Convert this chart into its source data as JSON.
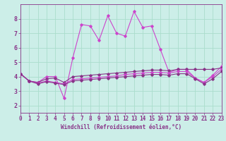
{
  "xlabel": "Windchill (Refroidissement éolien,°C)",
  "background_color": "#cceee8",
  "grid_color": "#aaddcc",
  "line_color": "#cc44cc",
  "line_color2": "#883388",
  "x_min": 0,
  "x_max": 23,
  "y_min": 1.5,
  "y_max": 9.0,
  "yticks": [
    2,
    3,
    4,
    5,
    6,
    7,
    8
  ],
  "xticks": [
    0,
    1,
    2,
    3,
    4,
    5,
    6,
    7,
    8,
    9,
    10,
    11,
    12,
    13,
    14,
    15,
    16,
    17,
    18,
    19,
    20,
    21,
    22,
    23
  ],
  "series1_x": [
    0,
    1,
    2,
    3,
    4,
    5,
    6,
    7,
    8,
    9,
    10,
    11,
    12,
    13,
    14,
    15,
    16,
    17,
    18,
    19,
    20,
    21,
    22,
    23
  ],
  "series1_y": [
    4.2,
    3.7,
    3.6,
    4.0,
    4.0,
    2.5,
    5.3,
    7.6,
    7.5,
    6.5,
    8.2,
    7.0,
    6.8,
    8.5,
    7.4,
    7.5,
    5.9,
    4.3,
    4.5,
    4.5,
    3.9,
    3.6,
    4.1,
    4.7
  ],
  "series2_x": [
    0,
    1,
    2,
    3,
    4,
    5,
    6,
    7,
    8,
    9,
    10,
    11,
    12,
    13,
    14,
    15,
    16,
    17,
    18,
    19,
    20,
    21,
    22,
    23
  ],
  "series2_y": [
    4.2,
    3.7,
    3.6,
    3.85,
    3.9,
    3.6,
    4.0,
    4.05,
    4.1,
    4.15,
    4.2,
    4.25,
    4.3,
    4.35,
    4.4,
    4.45,
    4.45,
    4.4,
    4.5,
    4.5,
    4.5,
    4.5,
    4.5,
    4.6
  ],
  "series3_x": [
    0,
    1,
    2,
    3,
    4,
    5,
    6,
    7,
    8,
    9,
    10,
    11,
    12,
    13,
    14,
    15,
    16,
    17,
    18,
    19,
    20,
    21,
    22,
    23
  ],
  "series3_y": [
    4.2,
    3.7,
    3.55,
    3.7,
    3.6,
    3.5,
    3.8,
    3.85,
    3.9,
    3.95,
    4.0,
    4.05,
    4.15,
    4.2,
    4.25,
    4.3,
    4.3,
    4.25,
    4.35,
    4.35,
    3.9,
    3.6,
    4.0,
    4.5
  ],
  "series4_x": [
    0,
    1,
    2,
    3,
    4,
    5,
    6,
    7,
    8,
    9,
    10,
    11,
    12,
    13,
    14,
    15,
    16,
    17,
    18,
    19,
    20,
    21,
    22,
    23
  ],
  "series4_y": [
    4.2,
    3.7,
    3.5,
    3.65,
    3.55,
    3.45,
    3.7,
    3.75,
    3.8,
    3.85,
    3.9,
    3.95,
    4.0,
    4.05,
    4.1,
    4.15,
    4.15,
    4.1,
    4.2,
    4.2,
    3.85,
    3.5,
    3.85,
    4.35
  ],
  "marker": "D",
  "markersize": 1.8,
  "linewidth": 0.8,
  "tick_fontsize": 5.5,
  "xlabel_fontsize": 5.5
}
